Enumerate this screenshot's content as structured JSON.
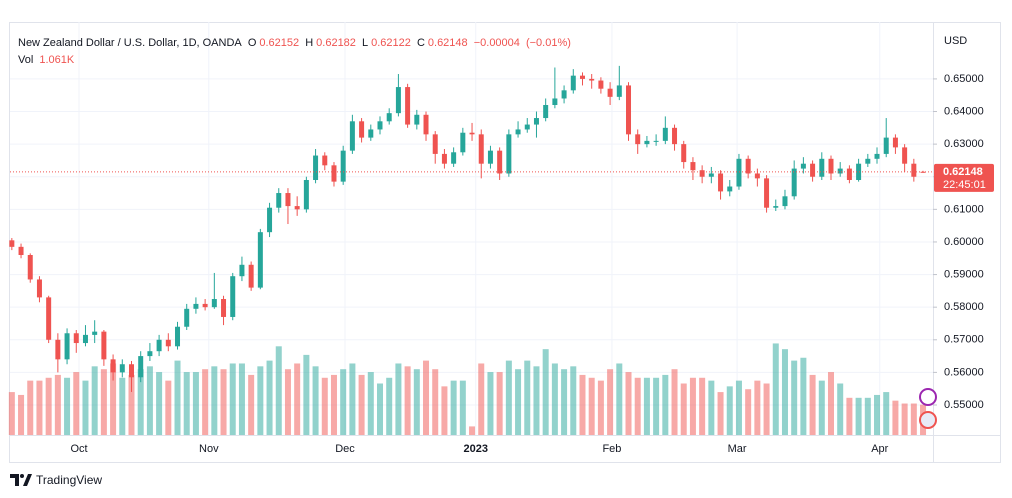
{
  "brand": "TradingView",
  "chart_data": {
    "type": "candlestick",
    "title": "New Zealand Dollar / U.S. Dollar, 1D, OANDA",
    "currency": "USD",
    "ohlc_labels": [
      "O",
      "H",
      "L",
      "C"
    ],
    "change": {
      "value": -4e-05,
      "label": "−0.00004"
    },
    "change_pct": {
      "value": -0.01,
      "label": "(−0.01%)"
    },
    "countdown": "22:45:01",
    "up_color": "#26a69a",
    "down_color": "#ef5350",
    "grid": true,
    "open": [
      0.6005,
      0.5985,
      0.596,
      0.5885,
      0.583,
      0.57,
      0.564,
      0.572,
      0.569,
      0.5715,
      0.5725,
      0.564,
      0.56,
      0.5625,
      0.5585,
      0.565,
      0.5665,
      0.57,
      0.568,
      0.574,
      0.5795,
      0.581,
      0.58,
      0.5825,
      0.577,
      0.5895,
      0.593,
      0.586,
      0.603,
      0.6105,
      0.615,
      0.611,
      0.61,
      0.619,
      0.6265,
      0.6235,
      0.6185,
      0.628,
      0.637,
      0.632,
      0.6345,
      0.637,
      0.6395,
      0.6475,
      0.636,
      0.639,
      0.633,
      0.627,
      0.624,
      0.6275,
      0.6335,
      0.633,
      0.624,
      0.628,
      0.621,
      0.633,
      0.6345,
      0.636,
      0.638,
      0.642,
      0.644,
      0.6465,
      0.651,
      0.65,
      0.6495,
      0.647,
      0.6445,
      0.648,
      0.633,
      0.63,
      0.631,
      0.631,
      0.635,
      0.63,
      0.6245,
      0.622,
      0.62,
      0.621,
      0.6155,
      0.617,
      0.6255,
      0.621,
      0.6195,
      0.6105,
      0.611,
      0.614,
      0.6225,
      0.624,
      0.62,
      0.6255,
      0.621,
      0.6225,
      0.619,
      0.624,
      0.6255,
      0.627,
      0.632,
      0.629,
      0.624,
      0.62152
    ],
    "high": [
      0.6012,
      0.5995,
      0.5965,
      0.5895,
      0.5835,
      0.572,
      0.5735,
      0.573,
      0.5745,
      0.576,
      0.573,
      0.5655,
      0.564,
      0.5635,
      0.5665,
      0.569,
      0.5715,
      0.572,
      0.5755,
      0.581,
      0.583,
      0.5825,
      0.5905,
      0.5835,
      0.5905,
      0.5955,
      0.594,
      0.604,
      0.612,
      0.6165,
      0.6165,
      0.614,
      0.62,
      0.6285,
      0.6275,
      0.6245,
      0.6295,
      0.639,
      0.638,
      0.636,
      0.6385,
      0.641,
      0.6515,
      0.6485,
      0.6405,
      0.64,
      0.634,
      0.6285,
      0.629,
      0.635,
      0.6365,
      0.6345,
      0.6295,
      0.629,
      0.6345,
      0.637,
      0.638,
      0.64,
      0.644,
      0.6535,
      0.648,
      0.653,
      0.652,
      0.6515,
      0.6505,
      0.649,
      0.654,
      0.649,
      0.6345,
      0.6325,
      0.633,
      0.6385,
      0.636,
      0.631,
      0.626,
      0.6235,
      0.623,
      0.622,
      0.619,
      0.627,
      0.6265,
      0.6225,
      0.6205,
      0.613,
      0.616,
      0.625,
      0.626,
      0.625,
      0.6275,
      0.6265,
      0.6245,
      0.6235,
      0.6255,
      0.627,
      0.629,
      0.638,
      0.633,
      0.63,
      0.6255,
      0.62182
    ],
    "low": [
      0.5975,
      0.595,
      0.5875,
      0.5815,
      0.569,
      0.56,
      0.5625,
      0.566,
      0.568,
      0.569,
      0.562,
      0.5575,
      0.5585,
      0.554,
      0.557,
      0.5635,
      0.565,
      0.5665,
      0.567,
      0.573,
      0.578,
      0.579,
      0.5795,
      0.5745,
      0.576,
      0.588,
      0.585,
      0.5855,
      0.6015,
      0.609,
      0.6055,
      0.608,
      0.609,
      0.618,
      0.622,
      0.617,
      0.6175,
      0.627,
      0.6305,
      0.631,
      0.633,
      0.636,
      0.6385,
      0.635,
      0.6345,
      0.631,
      0.624,
      0.6225,
      0.623,
      0.6265,
      0.631,
      0.6195,
      0.6225,
      0.619,
      0.62,
      0.632,
      0.6335,
      0.632,
      0.637,
      0.641,
      0.6425,
      0.6455,
      0.648,
      0.647,
      0.6455,
      0.642,
      0.6435,
      0.631,
      0.627,
      0.629,
      0.6295,
      0.63,
      0.628,
      0.6225,
      0.619,
      0.618,
      0.618,
      0.613,
      0.614,
      0.616,
      0.6195,
      0.617,
      0.609,
      0.6095,
      0.61,
      0.613,
      0.621,
      0.6185,
      0.619,
      0.619,
      0.62,
      0.618,
      0.6185,
      0.623,
      0.624,
      0.626,
      0.627,
      0.6215,
      0.6185,
      0.62122
    ],
    "close": [
      0.5985,
      0.596,
      0.5885,
      0.583,
      0.57,
      0.564,
      0.572,
      0.569,
      0.5715,
      0.5725,
      0.564,
      0.56,
      0.5625,
      0.5585,
      0.565,
      0.5665,
      0.57,
      0.568,
      0.574,
      0.5795,
      0.581,
      0.58,
      0.5825,
      0.577,
      0.5895,
      0.593,
      0.586,
      0.603,
      0.6105,
      0.615,
      0.611,
      0.61,
      0.619,
      0.6265,
      0.6235,
      0.6185,
      0.628,
      0.637,
      0.632,
      0.6345,
      0.637,
      0.6395,
      0.6475,
      0.636,
      0.639,
      0.633,
      0.627,
      0.624,
      0.6275,
      0.6335,
      0.633,
      0.624,
      0.628,
      0.621,
      0.633,
      0.6345,
      0.636,
      0.638,
      0.642,
      0.644,
      0.6465,
      0.651,
      0.65,
      0.6495,
      0.647,
      0.6445,
      0.648,
      0.633,
      0.63,
      0.631,
      0.631,
      0.635,
      0.63,
      0.6245,
      0.622,
      0.62,
      0.621,
      0.6155,
      0.617,
      0.6255,
      0.621,
      0.6195,
      0.6105,
      0.611,
      0.614,
      0.6225,
      0.624,
      0.62,
      0.6255,
      0.621,
      0.6225,
      0.619,
      0.624,
      0.6255,
      0.627,
      0.632,
      0.629,
      0.624,
      0.62,
      0.62148
    ],
    "volume": {
      "name": "Vol",
      "last_label": "1.061K",
      "vlim": [
        0,
        3.6
      ],
      "values": [
        1.5,
        1.4,
        1.9,
        1.9,
        2.0,
        2.1,
        2.0,
        2.2,
        1.9,
        2.4,
        2.3,
        2.5,
        2.0,
        2.1,
        2.3,
        2.4,
        2.2,
        1.9,
        2.6,
        2.2,
        2.2,
        2.3,
        2.4,
        2.3,
        2.5,
        2.5,
        2.1,
        2.4,
        2.6,
        3.1,
        2.3,
        2.5,
        2.8,
        2.4,
        2.0,
        2.1,
        2.3,
        2.5,
        2.1,
        2.2,
        1.8,
        2.0,
        2.5,
        2.4,
        2.3,
        2.6,
        2.3,
        1.7,
        1.9,
        1.9,
        0.3,
        2.5,
        2.2,
        2.2,
        2.6,
        2.3,
        2.6,
        2.4,
        3.0,
        2.5,
        2.3,
        2.4,
        2.1,
        2.0,
        1.9,
        2.3,
        2.5,
        2.2,
        2.0,
        2.0,
        2.0,
        2.1,
        2.3,
        1.8,
        2.0,
        2.0,
        1.9,
        1.5,
        1.7,
        1.9,
        1.6,
        1.9,
        1.8,
        3.2,
        3.0,
        2.6,
        2.7,
        2.1,
        1.9,
        2.2,
        1.8,
        1.3,
        1.3,
        1.3,
        1.4,
        1.5,
        1.2,
        1.1,
        1.1,
        1.061
      ]
    },
    "xlim": [
      -0.2,
      100.3
    ],
    "xticks": [
      {
        "value": 7.3,
        "label": "Oct"
      },
      {
        "value": 21.4,
        "label": "Nov"
      },
      {
        "value": 36.2,
        "label": "Dec"
      },
      {
        "value": 50.4,
        "label": "2023"
      },
      {
        "value": 65.2,
        "label": "Feb"
      },
      {
        "value": 78.8,
        "label": "Mar"
      },
      {
        "value": 94.3,
        "label": "Apr"
      }
    ],
    "ylim": [
      0.5408,
      0.665
    ],
    "yticks": [
      {
        "value": 0.55,
        "label": "0.55000"
      },
      {
        "value": 0.56,
        "label": "0.56000"
      },
      {
        "value": 0.57,
        "label": "0.57000"
      },
      {
        "value": 0.58,
        "label": "0.58000"
      },
      {
        "value": 0.59,
        "label": "0.59000"
      },
      {
        "value": 0.6,
        "label": "0.60000"
      },
      {
        "value": 0.61,
        "label": "0.61000"
      },
      {
        "value": 0.62,
        "label": "0.62000"
      },
      {
        "value": 0.63,
        "label": "0.63000"
      },
      {
        "value": 0.64,
        "label": "0.64000"
      },
      {
        "value": 0.65,
        "label": "0.65000"
      }
    ]
  }
}
